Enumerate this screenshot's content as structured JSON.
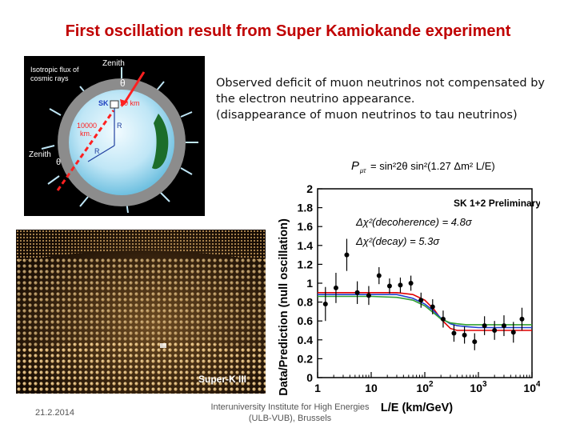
{
  "slide": {
    "title": "First oscillation result from Super Kamiokande experiment",
    "description": [
      "Observed deficit of muon neutrinos not compensated by",
      "the electron neutrino appearance.",
      "(disappearance of muon neutrinos to tau neutrinos)"
    ],
    "footer_date": "21.2.2014",
    "footer_institution": [
      "Interuniversity Institute for High Energies",
      "(ULB-VUB), Brussels"
    ]
  },
  "earth_diagram": {
    "zenith_top": "Zenith",
    "zenith_left": "Zenith",
    "flux_label": [
      "Isotropic flux of",
      "cosmic rays"
    ],
    "theta": "θ",
    "sk": "SK",
    "km20": "20 km",
    "km10000": [
      "10000",
      "km."
    ],
    "r": "R"
  },
  "photo": {
    "caption": "Super-K III"
  },
  "chart_data": {
    "type": "scatter",
    "formula": {
      "lhs": "P",
      "sub": "μτ",
      "rest": "= sin²2θ sin²(1.27 Δm² L/E)"
    },
    "legend_title": "SK 1+2 Preliminary",
    "annotations": [
      "Δχ²(decoherence) = 4.8σ",
      "Δχ²(decay) = 5.3σ"
    ],
    "ylabel": "Data/Prediction (null oscillation)",
    "xlabel": "L/E (km/GeV)",
    "x_scale": "log",
    "xlim": [
      1,
      10000
    ],
    "ylim": [
      0,
      2
    ],
    "y_ticks": [
      "0",
      "0.2",
      "0.4",
      "0.6",
      "0.8",
      "1",
      "1.2",
      "1.4",
      "1.6",
      "1.8",
      "2"
    ],
    "x_ticks": [
      {
        "label": "1",
        "exp": ""
      },
      {
        "label": "10",
        "exp": ""
      },
      {
        "label": "10",
        "exp": "2"
      },
      {
        "label": "10",
        "exp": "3"
      },
      {
        "label": "10",
        "exp": "4"
      }
    ],
    "data_points": [
      {
        "x": 1.4,
        "y": 0.78,
        "err": 0.18
      },
      {
        "x": 2.2,
        "y": 0.95,
        "err": 0.16
      },
      {
        "x": 3.5,
        "y": 1.3,
        "err": 0.17
      },
      {
        "x": 5.5,
        "y": 0.9,
        "err": 0.12
      },
      {
        "x": 9,
        "y": 0.87,
        "err": 0.1
      },
      {
        "x": 14,
        "y": 1.08,
        "err": 0.09
      },
      {
        "x": 22,
        "y": 0.97,
        "err": 0.08
      },
      {
        "x": 35,
        "y": 0.98,
        "err": 0.08
      },
      {
        "x": 55,
        "y": 1.0,
        "err": 0.08
      },
      {
        "x": 85,
        "y": 0.82,
        "err": 0.08
      },
      {
        "x": 140,
        "y": 0.75,
        "err": 0.08
      },
      {
        "x": 220,
        "y": 0.62,
        "err": 0.09
      },
      {
        "x": 350,
        "y": 0.47,
        "err": 0.09
      },
      {
        "x": 550,
        "y": 0.45,
        "err": 0.09
      },
      {
        "x": 850,
        "y": 0.38,
        "err": 0.09
      },
      {
        "x": 1300,
        "y": 0.55,
        "err": 0.1
      },
      {
        "x": 2000,
        "y": 0.5,
        "err": 0.1
      },
      {
        "x": 3000,
        "y": 0.55,
        "err": 0.11
      },
      {
        "x": 4500,
        "y": 0.48,
        "err": 0.11
      },
      {
        "x": 6500,
        "y": 0.62,
        "err": 0.12
      }
    ],
    "series": [
      {
        "name": "oscillation",
        "color": "#e00000",
        "x": [
          1,
          10,
          30,
          60,
          100,
          150,
          200,
          300,
          400,
          600,
          1000,
          10000
        ],
        "y": [
          0.9,
          0.9,
          0.9,
          0.88,
          0.82,
          0.72,
          0.62,
          0.52,
          0.5,
          0.5,
          0.5,
          0.5
        ]
      },
      {
        "name": "decoherence",
        "color": "#2040d0",
        "x": [
          1,
          10,
          30,
          60,
          100,
          150,
          200,
          300,
          400,
          600,
          1000,
          10000
        ],
        "y": [
          0.88,
          0.88,
          0.88,
          0.84,
          0.78,
          0.7,
          0.63,
          0.57,
          0.55,
          0.54,
          0.53,
          0.53
        ]
      },
      {
        "name": "decay",
        "color": "#30a030",
        "x": [
          1,
          10,
          30,
          60,
          100,
          150,
          200,
          300,
          400,
          600,
          1000,
          10000
        ],
        "y": [
          0.86,
          0.86,
          0.85,
          0.82,
          0.76,
          0.68,
          0.62,
          0.58,
          0.57,
          0.56,
          0.56,
          0.56
        ]
      }
    ]
  }
}
